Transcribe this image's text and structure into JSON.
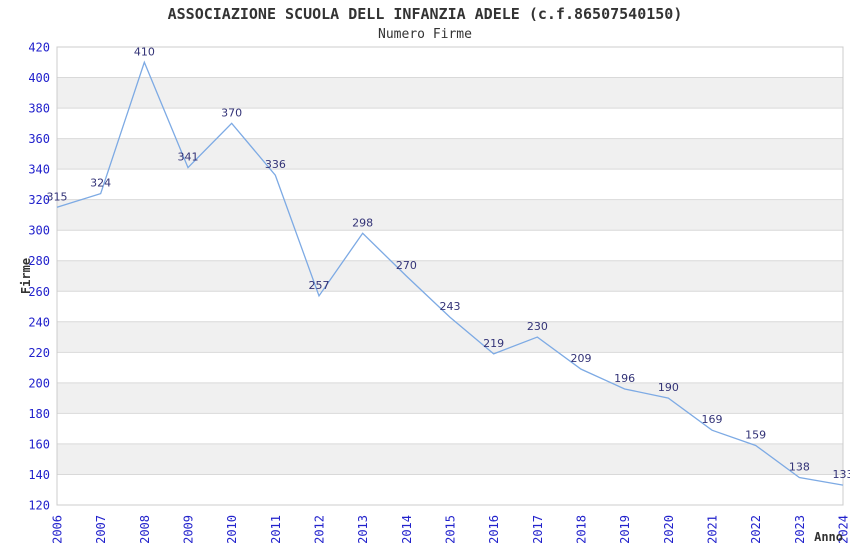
{
  "chart_data": {
    "type": "line",
    "title": "ASSOCIAZIONE SCUOLA DELL INFANZIA ADELE (c.f.86507540150)",
    "subtitle": "Numero Firme",
    "xlabel": "Anno",
    "ylabel": "Firme",
    "x": [
      2006,
      2007,
      2008,
      2009,
      2010,
      2011,
      2012,
      2013,
      2014,
      2015,
      2016,
      2017,
      2018,
      2019,
      2020,
      2021,
      2022,
      2023,
      2024
    ],
    "values": [
      315,
      324,
      410,
      341,
      370,
      336,
      257,
      298,
      270,
      243,
      219,
      230,
      209,
      196,
      190,
      169,
      159,
      138,
      133
    ],
    "ylim": [
      120,
      420
    ],
    "ytick_step": 20,
    "grid": true,
    "legend": false,
    "band_pattern": "alternating-horizontal",
    "colors": {
      "line": "#7daae4",
      "tick_label": "#2222cc",
      "point_label": "#333377",
      "title_text": "#333333",
      "band": "#f0f0f0",
      "gridline": "#d9d9d9",
      "border": "#cccccc",
      "background": "#ffffff"
    }
  }
}
